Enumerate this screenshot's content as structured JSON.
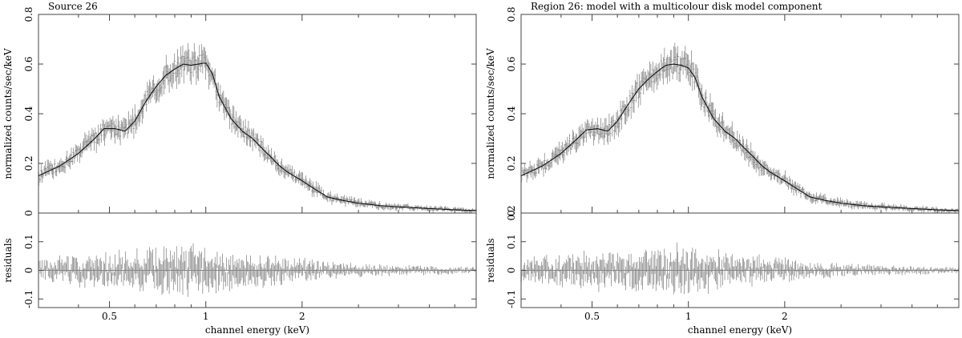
{
  "chart_data": [
    {
      "type": "line",
      "title": "Source 26",
      "upper_panel": {
        "ylabel": "normalized counts/sec/keV",
        "ylim": [
          0,
          0.8
        ],
        "yticks": [
          "0",
          "0.2",
          "0.4",
          "0.6",
          "0.8"
        ],
        "model": {
          "name": "model",
          "x": [
            0.3,
            0.35,
            0.4,
            0.45,
            0.48,
            0.52,
            0.56,
            0.6,
            0.65,
            0.7,
            0.75,
            0.8,
            0.85,
            0.9,
            0.95,
            1.0,
            1.05,
            1.1,
            1.2,
            1.3,
            1.4,
            1.5,
            1.6,
            1.7,
            1.8,
            2.0,
            2.2,
            2.4,
            2.7,
            3.0,
            3.5,
            4.0,
            5.0,
            6.0,
            7.0
          ],
          "y": [
            0.15,
            0.19,
            0.24,
            0.3,
            0.34,
            0.34,
            0.33,
            0.37,
            0.45,
            0.51,
            0.555,
            0.58,
            0.6,
            0.595,
            0.6,
            0.605,
            0.56,
            0.47,
            0.38,
            0.33,
            0.3,
            0.26,
            0.225,
            0.19,
            0.165,
            0.13,
            0.095,
            0.065,
            0.05,
            0.04,
            0.03,
            0.025,
            0.018,
            0.013,
            0.01
          ]
        },
        "noise_amplitude": 0.06
      },
      "lower_panel": {
        "ylabel": "residuals",
        "ylim": [
          -0.13,
          0.2
        ],
        "yticks": [
          "-0.1",
          "0",
          "0.1"
        ],
        "noise_amplitude": 0.06
      },
      "xlabel": "channel energy (keV)",
      "xlim": [
        0.3,
        7.0
      ],
      "xticks": [
        "0.5",
        "1",
        "2"
      ],
      "xtick_values": [
        0.5,
        1,
        2
      ],
      "xscale": "log"
    },
    {
      "type": "line",
      "title": "Region 26: model with a multicolour disk model component",
      "upper_panel": {
        "ylabel": "normalized counts/sec/keV",
        "ylim": [
          0,
          0.8
        ],
        "yticks": [
          "0",
          "0.2",
          "0.4",
          "0.6",
          "0.8"
        ],
        "model": {
          "name": "model",
          "x": [
            0.3,
            0.35,
            0.4,
            0.45,
            0.48,
            0.52,
            0.56,
            0.6,
            0.65,
            0.7,
            0.75,
            0.8,
            0.85,
            0.9,
            0.95,
            1.0,
            1.05,
            1.1,
            1.2,
            1.3,
            1.4,
            1.5,
            1.6,
            1.7,
            1.8,
            2.0,
            2.2,
            2.4,
            2.7,
            3.0,
            3.5,
            4.0,
            5.0,
            6.0,
            7.0
          ],
          "y": [
            0.15,
            0.19,
            0.24,
            0.3,
            0.335,
            0.34,
            0.33,
            0.37,
            0.44,
            0.5,
            0.54,
            0.57,
            0.595,
            0.6,
            0.595,
            0.585,
            0.545,
            0.47,
            0.38,
            0.33,
            0.3,
            0.26,
            0.225,
            0.19,
            0.165,
            0.13,
            0.095,
            0.065,
            0.05,
            0.04,
            0.03,
            0.025,
            0.018,
            0.013,
            0.01
          ]
        },
        "noise_amplitude": 0.06
      },
      "lower_panel": {
        "ylabel": "residuals",
        "ylim": [
          -0.13,
          0.2
        ],
        "yticks": [
          "-0.1",
          "0",
          "0.1",
          "0.2"
        ],
        "noise_amplitude": 0.06
      },
      "xlabel": "channel energy (keV)",
      "xlim": [
        0.3,
        7.0
      ],
      "xticks": [
        "0.5",
        "1",
        "2"
      ],
      "xtick_values": [
        0.5,
        1,
        2
      ],
      "xscale": "log"
    }
  ]
}
